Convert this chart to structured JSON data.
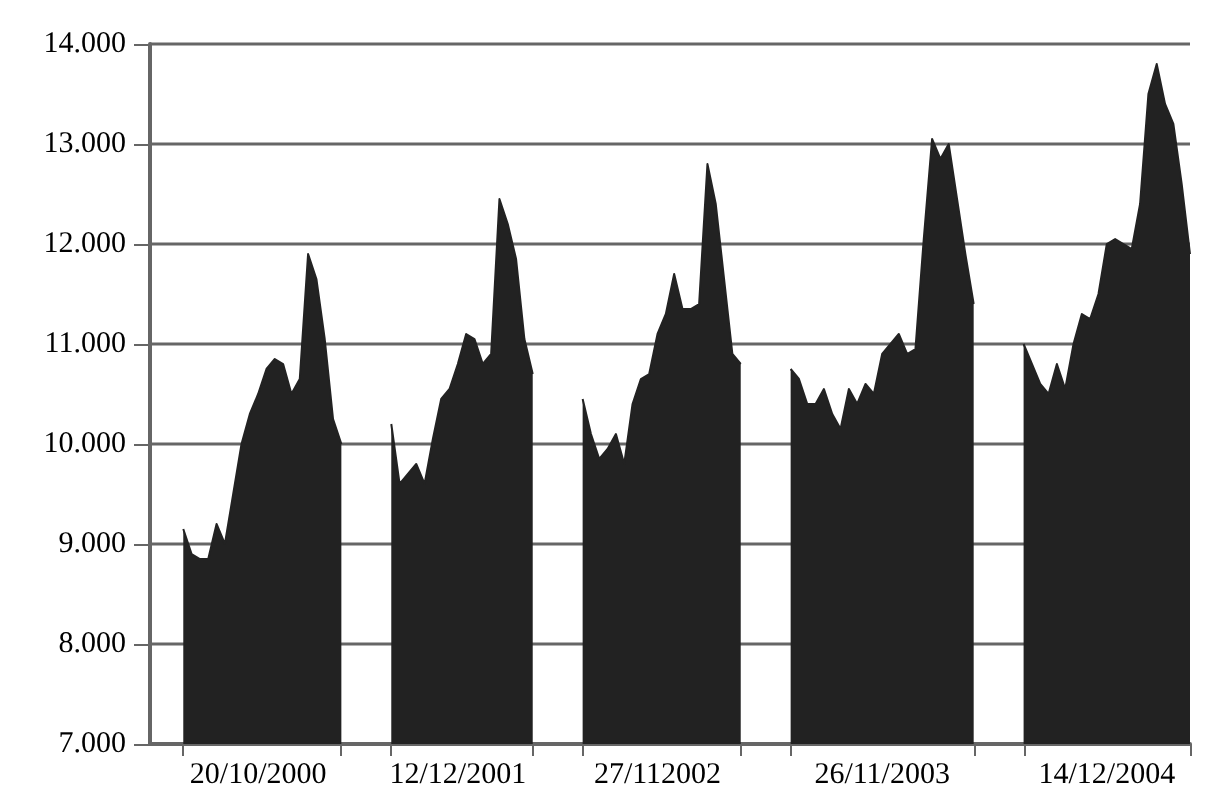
{
  "chart_data": {
    "type": "area",
    "color": "#222222",
    "grid": "y",
    "categories": [
      null,
      null,
      null,
      null,
      null,
      null,
      null,
      null,
      null,
      null,
      null,
      null,
      null,
      "20/10/2000",
      null,
      null,
      null,
      null,
      null,
      null,
      null,
      null,
      null,
      null,
      null,
      null,
      null,
      null,
      null,
      null,
      null,
      null,
      null,
      null,
      null,
      null,
      null,
      "12/12/2001",
      null,
      null,
      null,
      null,
      null,
      null,
      null,
      null,
      null,
      null,
      null,
      null,
      null,
      null,
      null,
      null,
      null,
      null,
      null,
      null,
      null,
      null,
      null,
      "27/112002",
      null,
      null,
      null,
      null,
      null,
      null,
      null,
      null,
      null,
      null,
      null,
      null,
      null,
      null,
      null,
      null,
      null,
      null,
      null,
      null,
      null,
      null,
      null,
      null,
      null,
      null,
      "26/11/2003",
      null,
      null,
      null,
      null,
      null,
      null,
      null,
      null,
      null,
      null,
      null,
      null,
      null,
      null,
      null,
      null,
      null,
      null,
      null,
      null,
      null,
      null,
      null,
      null,
      null,
      null,
      "14/12/2004",
      null,
      null,
      null,
      null,
      null,
      null,
      null,
      null,
      null,
      null
    ],
    "values": [
      null,
      null,
      null,
      null,
      9150,
      8900,
      8850,
      8850,
      9200,
      9000,
      9500,
      10000,
      10300,
      10500,
      10750,
      10850,
      10800,
      10500,
      10650,
      11900,
      11650,
      11050,
      10250,
      10000,
      null,
      null,
      null,
      null,
      null,
      10200,
      9600,
      9700,
      9800,
      9600,
      10050,
      10450,
      10550,
      10800,
      11100,
      11050,
      10800,
      10900,
      12450,
      12200,
      11850,
      11050,
      10700,
      null,
      null,
      null,
      null,
      null,
      10450,
      10100,
      9850,
      9950,
      10100,
      9800,
      10400,
      10650,
      10700,
      11100,
      11300,
      11700,
      11350,
      11350,
      11400,
      12800,
      12400,
      11650,
      10900,
      10800,
      null,
      null,
      null,
      null,
      null,
      10750,
      10650,
      10400,
      10400,
      10550,
      10300,
      10150,
      10550,
      10400,
      10600,
      10500,
      10900,
      11000,
      11100,
      10900,
      10950,
      12050,
      13050,
      12850,
      13000,
      12450,
      11900,
      11400,
      null,
      null,
      null,
      null,
      null,
      11000,
      10800,
      10600,
      10500,
      10800,
      10550,
      11000,
      11300,
      11250,
      11500,
      12000,
      12050,
      12000,
      11950,
      12400,
      13500,
      13800,
      13400,
      13200,
      12600,
      11900
    ],
    "ylim": [
      7000,
      14000
    ],
    "yticks": [
      {
        "value": 7000,
        "label": "7.000"
      },
      {
        "value": 8000,
        "label": "8.000"
      },
      {
        "value": 9000,
        "label": "9.000"
      },
      {
        "value": 10000,
        "label": "10.000"
      },
      {
        "value": 11000,
        "label": "11.000"
      },
      {
        "value": 12000,
        "label": "12.000"
      },
      {
        "value": 13000,
        "label": "13.000"
      },
      {
        "value": 14000,
        "label": "14.000"
      }
    ]
  }
}
